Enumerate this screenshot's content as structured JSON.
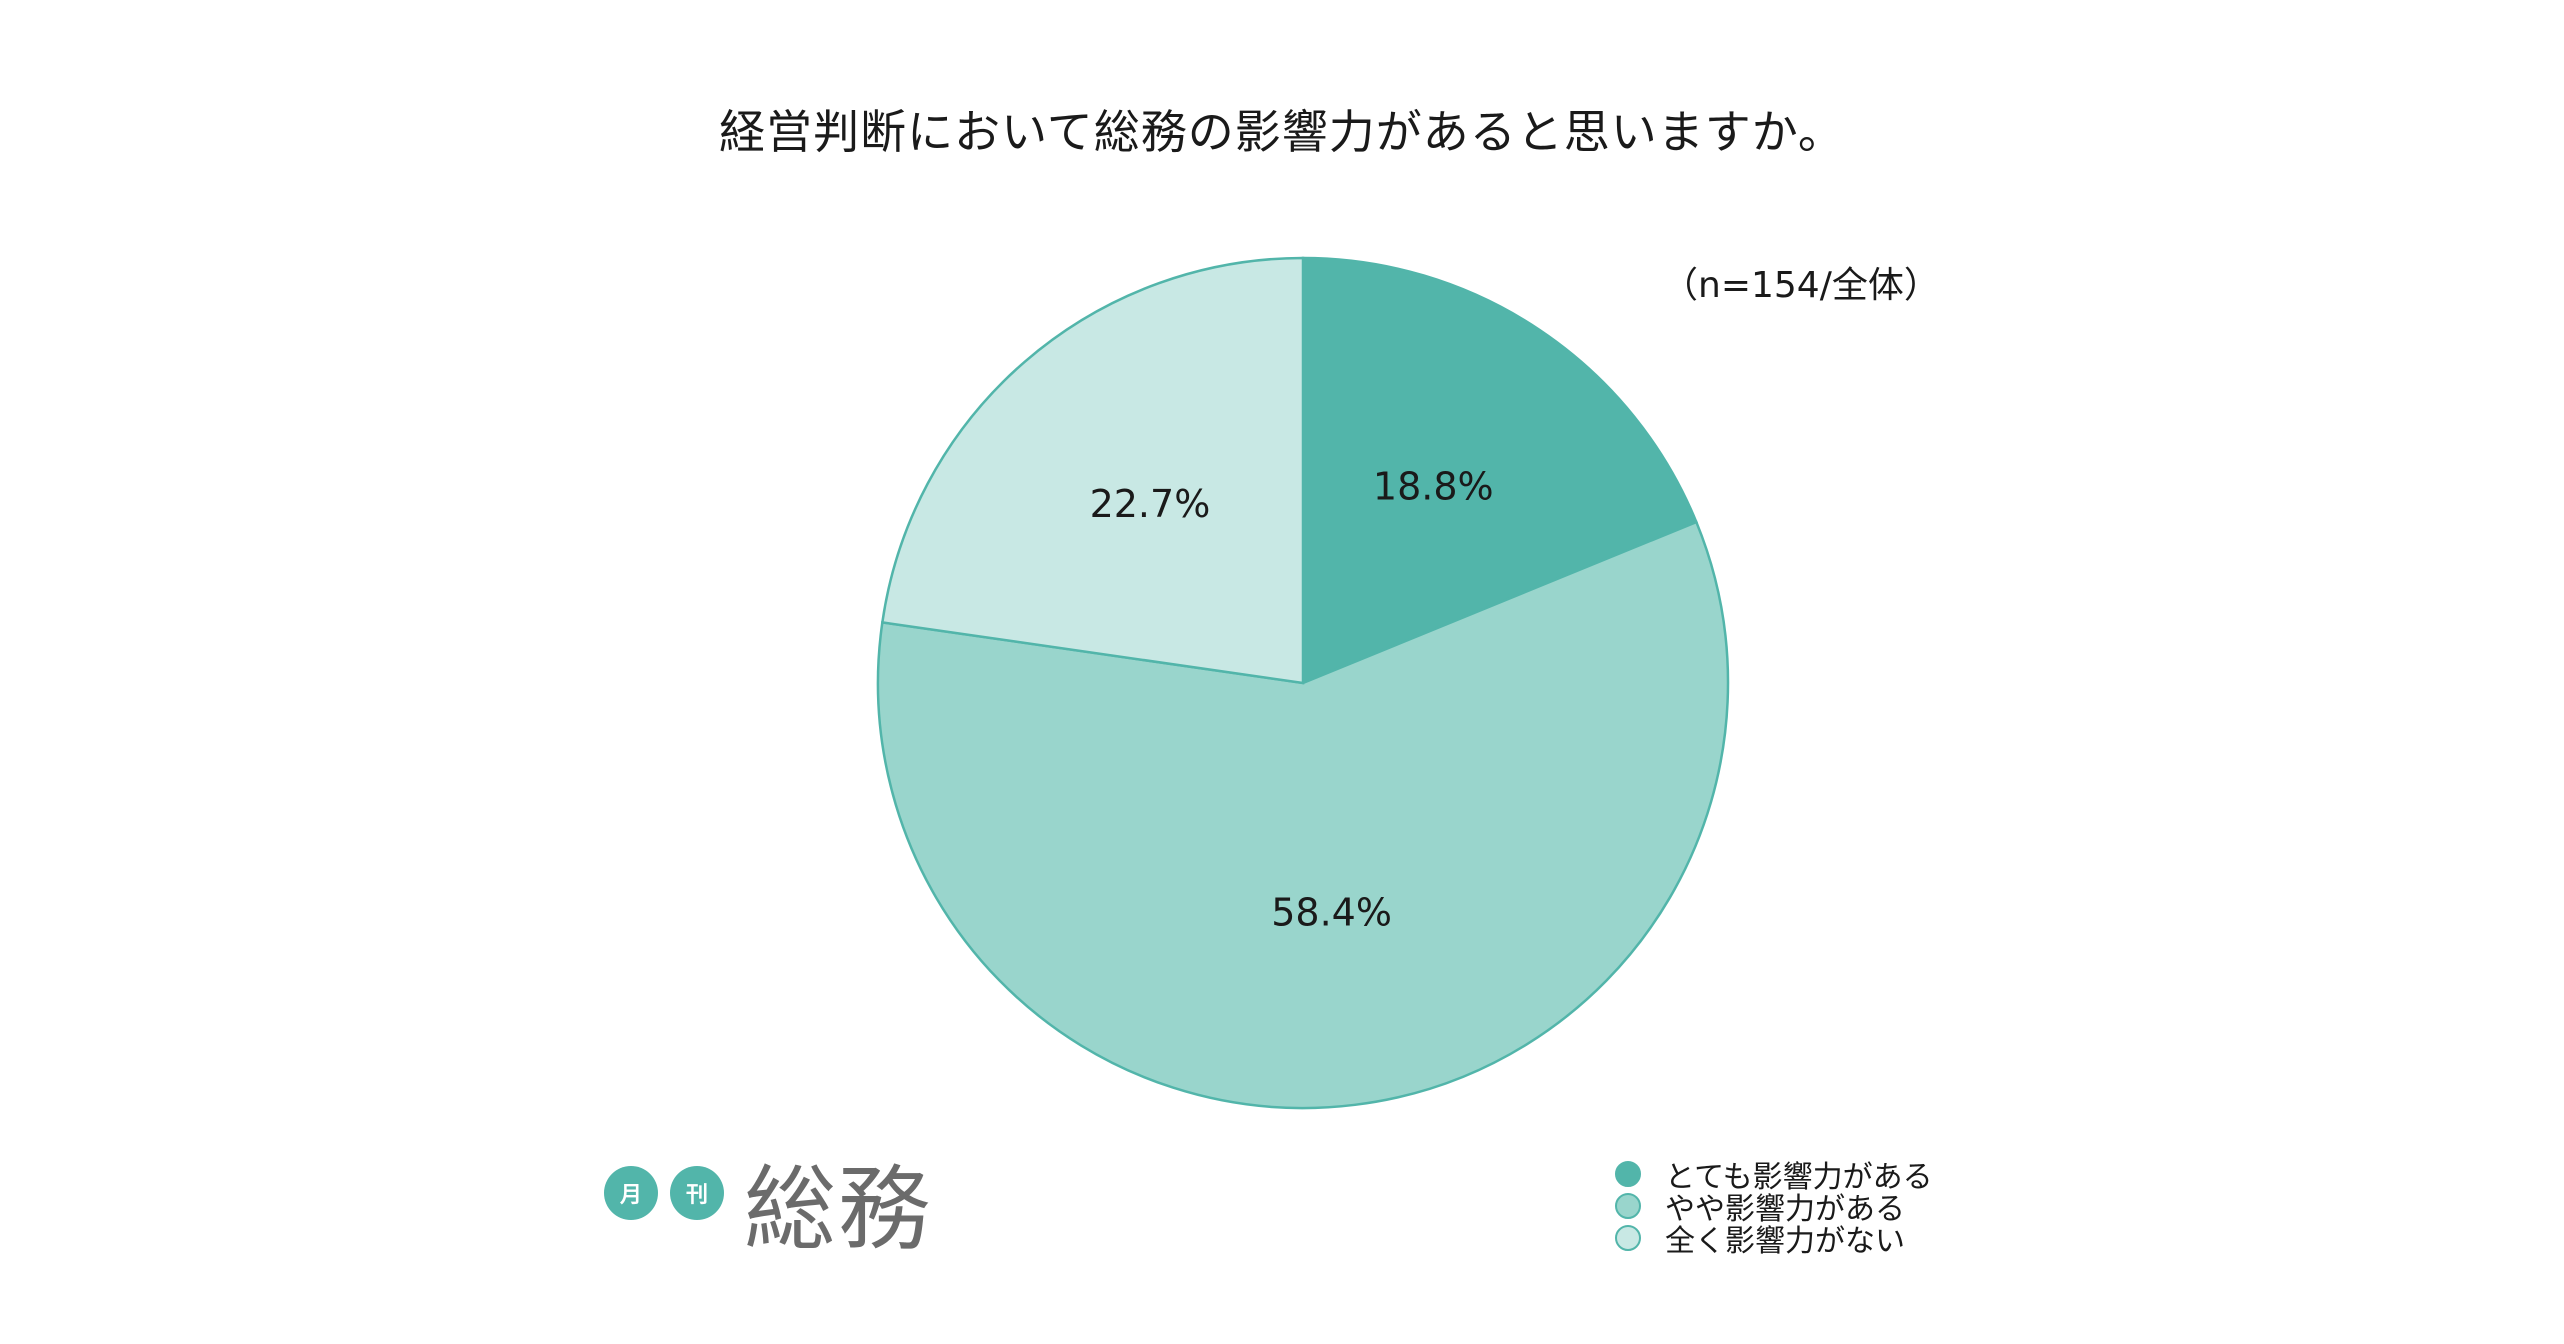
{
  "chart_data": {
    "type": "pie",
    "title": "経営判断において総務の影響力があると思いますか。",
    "note": "（n=154/全体）",
    "slices": [
      {
        "label": "とても影響力がある",
        "value": 18.8,
        "display": "18.8%",
        "color": "#52b5aa"
      },
      {
        "label": "やや影響力がある",
        "value": 58.4,
        "display": "58.4%",
        "color": "#99d5cc"
      },
      {
        "label": "全く影響力がない",
        "value": 22.7,
        "display": "22.7%",
        "color": "#c8e8e4"
      }
    ],
    "start": "12 o'clock",
    "direction": "clockwise",
    "border_color": "#52b5aa",
    "legend_position": "bottom-right"
  },
  "logo": {
    "badge1": "月",
    "badge2": "刊",
    "word": "総務",
    "accent": "#52b5aa"
  }
}
